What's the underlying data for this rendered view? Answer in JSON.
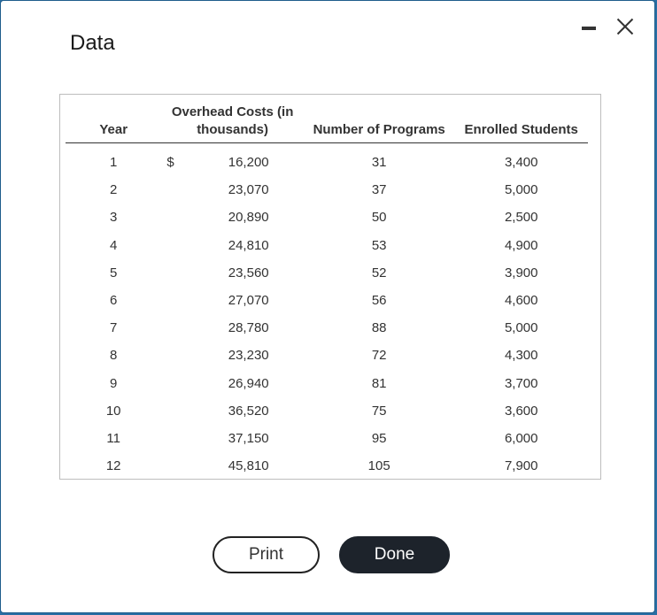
{
  "dialog": {
    "title": "Data",
    "print_label": "Print",
    "done_label": "Done"
  },
  "table": {
    "headers": {
      "year": "Year",
      "overhead": "Overhead Costs (in thousands)",
      "programs": "Number of Programs",
      "students": "Enrolled Students"
    },
    "currency_symbol": "$",
    "rows": [
      {
        "year": "1",
        "cost": "16,200",
        "programs": "31",
        "students": "3,400"
      },
      {
        "year": "2",
        "cost": "23,070",
        "programs": "37",
        "students": "5,000"
      },
      {
        "year": "3",
        "cost": "20,890",
        "programs": "50",
        "students": "2,500"
      },
      {
        "year": "4",
        "cost": "24,810",
        "programs": "53",
        "students": "4,900"
      },
      {
        "year": "5",
        "cost": "23,560",
        "programs": "52",
        "students": "3,900"
      },
      {
        "year": "6",
        "cost": "27,070",
        "programs": "56",
        "students": "4,600"
      },
      {
        "year": "7",
        "cost": "28,780",
        "programs": "88",
        "students": "5,000"
      },
      {
        "year": "8",
        "cost": "23,230",
        "programs": "72",
        "students": "4,300"
      },
      {
        "year": "9",
        "cost": "26,940",
        "programs": "81",
        "students": "3,700"
      },
      {
        "year": "10",
        "cost": "36,520",
        "programs": "75",
        "students": "3,600"
      },
      {
        "year": "11",
        "cost": "37,150",
        "programs": "95",
        "students": "6,000"
      },
      {
        "year": "12",
        "cost": "45,810",
        "programs": "105",
        "students": "7,900"
      }
    ]
  }
}
